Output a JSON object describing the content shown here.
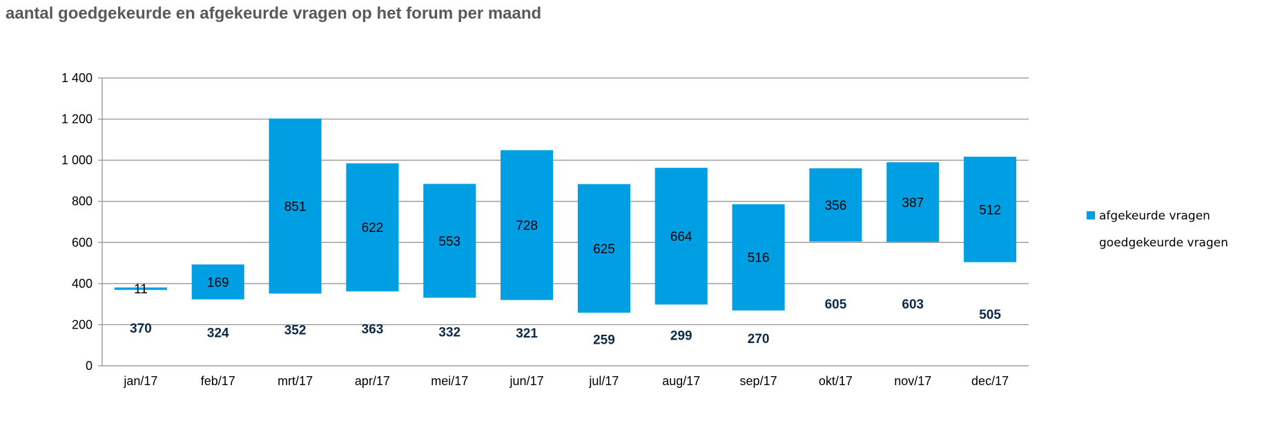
{
  "chart_data": {
    "type": "bar",
    "stacked": true,
    "title": "aantal goedgekeurde en afgekeurde vragen op het forum per maand",
    "xlabel": "",
    "ylabel": "",
    "ylim": [
      0,
      1400
    ],
    "yticks": [
      0,
      200,
      400,
      600,
      800,
      1000,
      1200,
      1400
    ],
    "ytick_labels": [
      "0",
      "200",
      "400",
      "600",
      "800",
      "1 000",
      "1 200",
      "1 400"
    ],
    "grid": true,
    "legend_position": "right",
    "categories": [
      "jan/17",
      "feb/17",
      "mrt/17",
      "apr/17",
      "mei/17",
      "jun/17",
      "jul/17",
      "aug/17",
      "sep/17",
      "okt/17",
      "nov/17",
      "dec/17"
    ],
    "series": [
      {
        "name": "goedgekeurde vragen",
        "color": "#009fe3",
        "filled": false,
        "values": [
          370,
          324,
          352,
          363,
          332,
          321,
          259,
          299,
          270,
          605,
          603,
          505
        ]
      },
      {
        "name": "afgekeurde vragen",
        "color": "#009fe3",
        "filled": true,
        "values": [
          11,
          169,
          851,
          622,
          553,
          728,
          625,
          664,
          516,
          356,
          387,
          512
        ]
      }
    ]
  }
}
